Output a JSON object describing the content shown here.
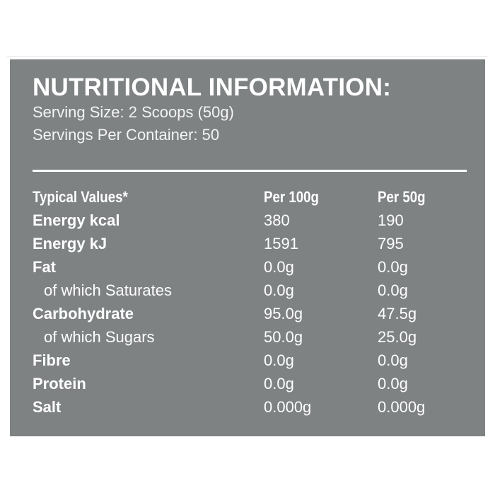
{
  "title": "NUTRITIONAL INFORMATION:",
  "serving_size": "Serving Size: 2 Scoops (50g)",
  "servings_per_container": "Servings Per Container: 50",
  "table": {
    "headers": [
      "Typical Values*",
      "Per 100g",
      "Per 50g"
    ],
    "rows": [
      {
        "label": "Energy kcal",
        "per100": "380",
        "per50": "190",
        "bold": true
      },
      {
        "label": "Energy kJ",
        "per100": "1591",
        "per50": "795",
        "bold": true
      },
      {
        "label": "Fat",
        "per100": "0.0g",
        "per50": "0.0g",
        "bold": true
      },
      {
        "label": "of which Saturates",
        "per100": "0.0g",
        "per50": "0.0g",
        "bold": false
      },
      {
        "label": "Carbohydrate",
        "per100": "95.0g",
        "per50": "47.5g",
        "bold": true
      },
      {
        "label": "of which Sugars",
        "per100": "50.0g",
        "per50": "25.0g",
        "bold": false
      },
      {
        "label": "Fibre",
        "per100": "0.0g",
        "per50": "0.0g",
        "bold": true
      },
      {
        "label": "Protein",
        "per100": "0.0g",
        "per50": "0.0g",
        "bold": true
      },
      {
        "label": "Salt",
        "per100": "0.000g",
        "per50": "0.000g",
        "bold": true
      }
    ]
  },
  "colors": {
    "panel": "#7e8283",
    "text": "#ffffff"
  }
}
